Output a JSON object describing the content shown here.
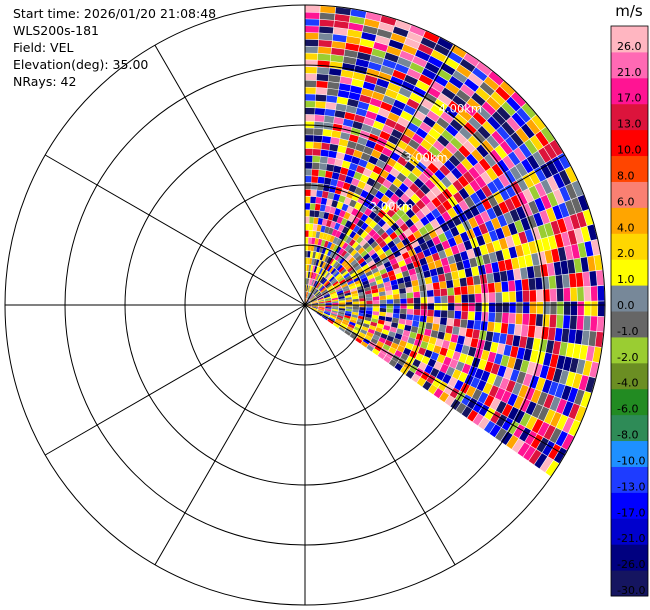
{
  "info": {
    "start_time": "Start time: 2026/01/20 21:08:48",
    "instrument": "WLS200s-181",
    "field": "Field: VEL",
    "elevation": "Elevation(deg): 35.00",
    "nrays": "NRays: 42"
  },
  "chart_data": {
    "type": "heatmap",
    "projection": "polar-ppi",
    "field": "VEL",
    "units": "m/s",
    "grid": true,
    "rings_km": [
      1,
      2,
      3,
      4,
      5
    ],
    "ring_labels": [
      "2.00km",
      "3.00km",
      "4.00km"
    ],
    "ring_labels_hidden_km": [
      1,
      5
    ],
    "ring_label_bearing_deg": 35,
    "spokes_deg": [
      0,
      30,
      60,
      90,
      120,
      150,
      180,
      210,
      240,
      270,
      300,
      330
    ],
    "scan_sector_deg": [
      0,
      125
    ],
    "n_rays": 42,
    "max_range_km": 5.0,
    "colorbar": {
      "unit": "m/s",
      "ticks": [
        "-30.0",
        "-26.0",
        "-21.0",
        "-17.0",
        "-13.0",
        "-10.0",
        "-8.0",
        "-6.0",
        "-4.0",
        "-2.0",
        "-1.0",
        "0.0",
        "1.0",
        "2.0",
        "4.0",
        "6.0",
        "8.0",
        "10.0",
        "13.0",
        "17.0",
        "21.0",
        "26.0"
      ],
      "colors": [
        "#151560",
        "#000080",
        "#0000cd",
        "#0000ff",
        "#1e3cff",
        "#1e90ff",
        "#2e8b57",
        "#228b22",
        "#6b8e23",
        "#9acd32",
        "#666666",
        "#778899",
        "#ffff00",
        "#ffd700",
        "#ffa500",
        "#fa8072",
        "#ff4500",
        "#ff0000",
        "#dc143c",
        "#ff1493",
        "#ff69b4",
        "#ffb6c1"
      ]
    }
  }
}
